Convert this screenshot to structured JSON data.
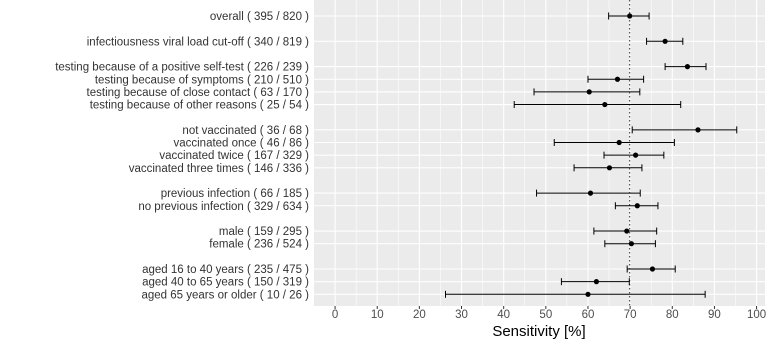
{
  "chart_data": {
    "type": "scatter",
    "style": "forest-plot",
    "xlabel": "Sensitivity [%]",
    "xlim": [
      -5,
      102
    ],
    "xticks": [
      0,
      10,
      20,
      30,
      40,
      50,
      60,
      70,
      80,
      90,
      100
    ],
    "reference_line": 69.9,
    "grid": true,
    "background": "#ebebeb",
    "colors": {
      "point": "#000000",
      "ci": "#000000",
      "grid": "#ffffff",
      "reference": "#333333"
    },
    "rows": [
      {
        "label": "overall ( 395 / 820 )",
        "estimate": 69.9,
        "lower": 64.9,
        "upper": 74.5
      },
      {
        "label": "infectiousness viral load cut-off ( 340 / 819 )",
        "estimate": 78.3,
        "lower": 73.9,
        "upper": 82.5
      },
      {
        "label": "testing because of a positive self-test ( 226 / 239 )",
        "estimate": 83.6,
        "lower": 78.3,
        "upper": 88.0
      },
      {
        "label": "testing because of symptoms ( 210 / 510 )",
        "estimate": 67.0,
        "lower": 60.0,
        "upper": 73.2
      },
      {
        "label": "testing because of close contact ( 63 / 170 )",
        "estimate": 60.3,
        "lower": 47.2,
        "upper": 72.3
      },
      {
        "label": "testing because of other reasons ( 25 / 54 )",
        "estimate": 64.0,
        "lower": 42.5,
        "upper": 82.0
      },
      {
        "label": "not vaccinated ( 36 / 68 )",
        "estimate": 86.1,
        "lower": 70.5,
        "upper": 95.3
      },
      {
        "label": "vaccinated once ( 46 / 86 )",
        "estimate": 67.4,
        "lower": 52.0,
        "upper": 80.5
      },
      {
        "label": "vaccinated twice ( 167 / 329 )",
        "estimate": 71.3,
        "lower": 63.8,
        "upper": 78.0
      },
      {
        "label": "vaccinated three times ( 146 / 336 )",
        "estimate": 65.1,
        "lower": 56.7,
        "upper": 72.8
      },
      {
        "label": "previous infection ( 66 / 185 )",
        "estimate": 60.6,
        "lower": 47.8,
        "upper": 72.4
      },
      {
        "label": "no previous infection ( 329 / 634 )",
        "estimate": 71.7,
        "lower": 66.5,
        "upper": 76.6
      },
      {
        "label": "male ( 159 / 295 )",
        "estimate": 69.2,
        "lower": 61.4,
        "upper": 76.3
      },
      {
        "label": "female ( 236 / 524 )",
        "estimate": 70.3,
        "lower": 64.0,
        "upper": 76.0
      },
      {
        "label": "aged 16 to 40 years ( 235 / 475 )",
        "estimate": 75.3,
        "lower": 69.3,
        "upper": 80.7
      },
      {
        "label": "aged 40 to 65 years ( 150 / 319 )",
        "estimate": 62.0,
        "lower": 53.7,
        "upper": 69.8
      },
      {
        "label": "aged 65 years or older ( 10 / 26 )",
        "estimate": 60.0,
        "lower": 26.2,
        "upper": 87.8
      }
    ]
  }
}
